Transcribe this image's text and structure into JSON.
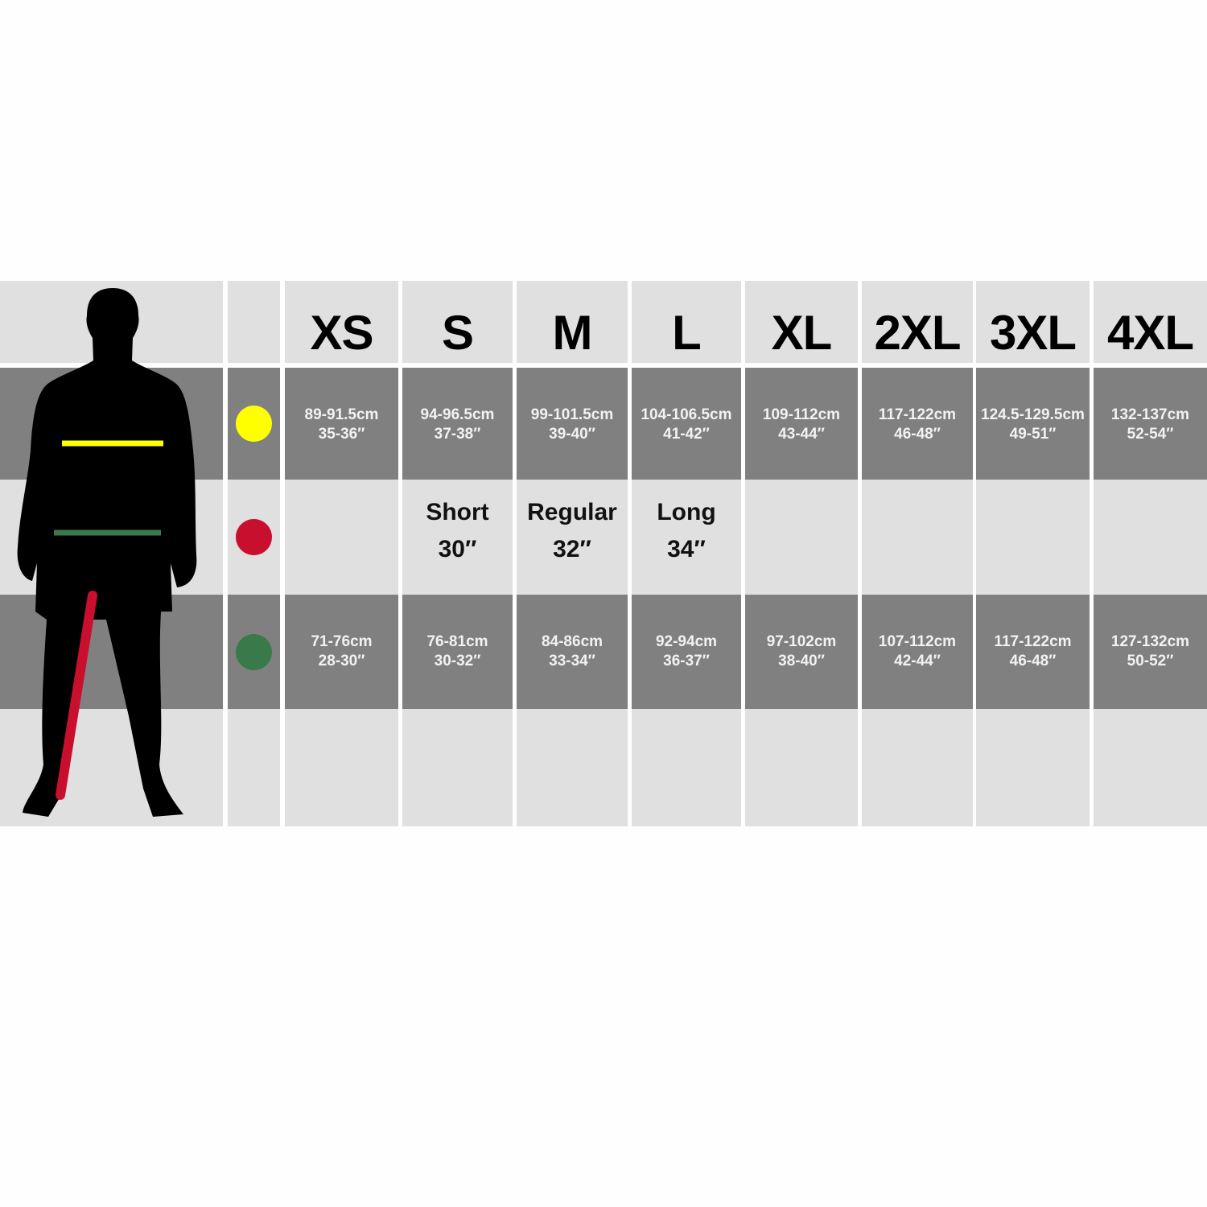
{
  "colors": {
    "chest": "#ffff00",
    "inside_leg": "#c8102e",
    "waist": "#3a7a4a",
    "dark_row": "#808080",
    "light_row": "#e0e0e0"
  },
  "sizes": [
    "XS",
    "S",
    "M",
    "L",
    "XL",
    "2XL",
    "3XL",
    "4XL"
  ],
  "chest": [
    {
      "cm": "89-91.5cm",
      "in": "35-36″"
    },
    {
      "cm": "94-96.5cm",
      "in": "37-38″"
    },
    {
      "cm": "99-101.5cm",
      "in": "39-40″"
    },
    {
      "cm": "104-106.5cm",
      "in": "41-42″"
    },
    {
      "cm": "109-112cm",
      "in": "43-44″"
    },
    {
      "cm": "117-122cm",
      "in": "46-48″"
    },
    {
      "cm": "124.5-129.5cm",
      "in": "49-51″"
    },
    {
      "cm": "132-137cm",
      "in": "52-54″"
    }
  ],
  "inside_leg": [
    {
      "label": "",
      "value": ""
    },
    {
      "label": "Short",
      "value": "30″"
    },
    {
      "label": "Regular",
      "value": "32″"
    },
    {
      "label": "Long",
      "value": "34″"
    },
    {
      "label": "",
      "value": ""
    },
    {
      "label": "",
      "value": ""
    },
    {
      "label": "",
      "value": ""
    },
    {
      "label": "",
      "value": ""
    }
  ],
  "waist": [
    {
      "cm": "71-76cm",
      "in": "28-30″"
    },
    {
      "cm": "76-81cm",
      "in": "30-32″"
    },
    {
      "cm": "84-86cm",
      "in": "33-34″"
    },
    {
      "cm": "92-94cm",
      "in": "36-37″"
    },
    {
      "cm": "97-102cm",
      "in": "38-40″"
    },
    {
      "cm": "107-112cm",
      "in": "42-44″"
    },
    {
      "cm": "117-122cm",
      "in": "46-48″"
    },
    {
      "cm": "127-132cm",
      "in": "50-52″"
    }
  ]
}
